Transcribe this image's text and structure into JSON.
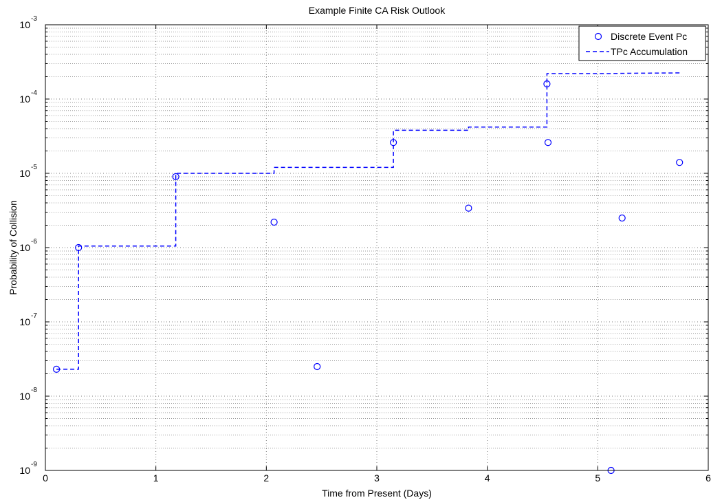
{
  "chart_data": {
    "type": "scatter",
    "title": "Example Finite CA Risk Outlook",
    "xlabel": "Time from Present (Days)",
    "ylabel": "Probability of Collision",
    "xlim": [
      0,
      6
    ],
    "ylim": [
      1e-09,
      0.001
    ],
    "yscale": "log",
    "grid": true,
    "legend_position": "top-right",
    "x_ticks": [
      "0",
      "1",
      "2",
      "3",
      "4",
      "5",
      "6"
    ],
    "y_ticks": [
      {
        "exp": -9,
        "base": "10",
        "sup": "-9"
      },
      {
        "exp": -8,
        "base": "10",
        "sup": "-8"
      },
      {
        "exp": -7,
        "base": "10",
        "sup": "-7"
      },
      {
        "exp": -6,
        "base": "10",
        "sup": "-6"
      },
      {
        "exp": -5,
        "base": "10",
        "sup": "-5"
      },
      {
        "exp": -4,
        "base": "10",
        "sup": "-4"
      },
      {
        "exp": -3,
        "base": "10",
        "sup": "-3"
      }
    ],
    "series": [
      {
        "name": "Discrete Event Pc",
        "style": "markers",
        "color": "#0000ff",
        "points": [
          [
            0.1,
            2.3e-08
          ],
          [
            0.3,
            1e-06
          ],
          [
            1.18,
            9e-06
          ],
          [
            2.07,
            2.2e-06
          ],
          [
            2.46,
            2.5e-08
          ],
          [
            3.15,
            2.6e-05
          ],
          [
            3.83,
            3.4e-06
          ],
          [
            4.54,
            0.00016
          ],
          [
            4.55,
            2.6e-05
          ],
          [
            5.12,
            1e-09
          ],
          [
            5.22,
            2.5e-06
          ],
          [
            5.74,
            1.4e-05
          ]
        ]
      },
      {
        "name": "TPc Accumulation",
        "style": "dashed-step",
        "color": "#0000ff",
        "points": [
          [
            0.1,
            2.3e-08
          ],
          [
            0.3,
            2.3e-08
          ],
          [
            0.3,
            1.05e-06
          ],
          [
            1.18,
            1.05e-06
          ],
          [
            1.18,
            1e-05
          ],
          [
            2.07,
            1e-05
          ],
          [
            2.07,
            1.2e-05
          ],
          [
            2.46,
            1.2e-05
          ],
          [
            3.15,
            1.2e-05
          ],
          [
            3.15,
            3.8e-05
          ],
          [
            3.83,
            3.8e-05
          ],
          [
            3.83,
            4.2e-05
          ],
          [
            4.54,
            4.2e-05
          ],
          [
            4.54,
            0.00022
          ],
          [
            5.12,
            0.00022
          ],
          [
            5.22,
            0.000222
          ],
          [
            5.74,
            0.000225
          ]
        ]
      }
    ]
  }
}
